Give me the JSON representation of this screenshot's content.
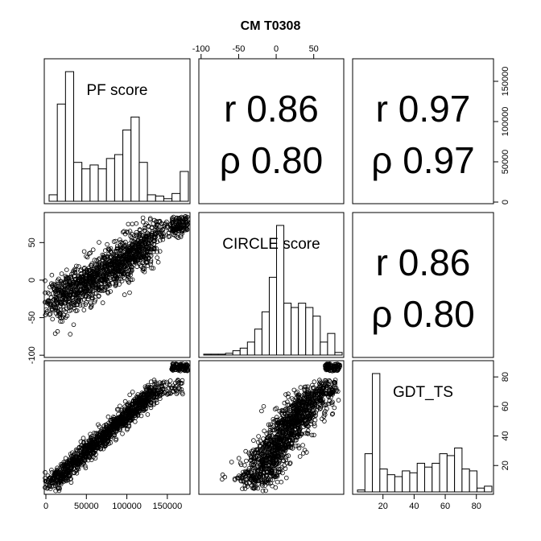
{
  "chart_data": {
    "type": "scatter",
    "title": "CM T0308",
    "variables": [
      "PF score",
      "CIRCLE score",
      "GDT_TS"
    ],
    "grid": false,
    "axes": {
      "top": {
        "variable": "CIRCLE score",
        "ticks": [
          -100,
          -50,
          0,
          50
        ]
      },
      "bottom": {
        "variable": "PF score",
        "ticks": [
          0,
          50000,
          100000,
          150000
        ]
      },
      "left": {
        "variable": "CIRCLE score",
        "ticks": [
          -100,
          -50,
          0,
          50
        ]
      },
      "right_top": {
        "variable": "PF score",
        "ticks": [
          0,
          50000,
          100000,
          150000
        ]
      },
      "right_bottom": {
        "variable": "GDT_TS",
        "ticks": [
          20,
          40,
          60,
          80
        ]
      },
      "bottom_right": {
        "variable": "GDT_TS",
        "ticks": [
          20,
          40,
          60,
          80
        ]
      }
    },
    "ranges": {
      "PF score": [
        -2000,
        178000
      ],
      "CIRCLE score": [
        -103,
        90
      ],
      "GDT_TS": [
        0.5,
        91
      ]
    },
    "correlations": [
      {
        "pair": "PF score / CIRCLE score",
        "r_label": "r 0.86",
        "rho_label": "ρ 0.80"
      },
      {
        "pair": "PF score / GDT_TS",
        "r_label": "r 0.97",
        "rho_label": "ρ 0.97"
      },
      {
        "pair": "CIRCLE score / GDT_TS",
        "r_label": "r 0.86",
        "rho_label": "ρ 0.80"
      }
    ],
    "histograms": [
      {
        "variable": "PF score",
        "label": "PF score",
        "bin_edges": [
          0,
          10000,
          20000,
          30000,
          40000,
          50000,
          60000,
          70000,
          80000,
          90000,
          100000,
          110000,
          120000,
          130000,
          140000,
          150000,
          160000,
          170000
        ],
        "counts": [
          5,
          75,
          100,
          30,
          25,
          28,
          25,
          33,
          36,
          55,
          65,
          30,
          5,
          4,
          2,
          6,
          23
        ]
      },
      {
        "variable": "CIRCLE score",
        "label": "CIRCLE score",
        "bin_edges": [
          -100,
          -90,
          -80,
          -70,
          -60,
          -50,
          -40,
          -30,
          -20,
          -10,
          0,
          10,
          20,
          30,
          40,
          50,
          60,
          70,
          80,
          90
        ],
        "counts": [
          1,
          1,
          1,
          2,
          5,
          8,
          15,
          30,
          50,
          90,
          150,
          60,
          55,
          60,
          55,
          45,
          15,
          25,
          3
        ]
      },
      {
        "variable": "GDT_TS",
        "label": "GDT_TS",
        "bin_edges": [
          0,
          5,
          10,
          15,
          20,
          25,
          30,
          35,
          40,
          45,
          50,
          55,
          60,
          65,
          70,
          75,
          80,
          85,
          90
        ],
        "counts": [
          1,
          20,
          62,
          12,
          9,
          8,
          11,
          10,
          15,
          13,
          15,
          20,
          19,
          23,
          12,
          11,
          2,
          3
        ]
      }
    ]
  }
}
